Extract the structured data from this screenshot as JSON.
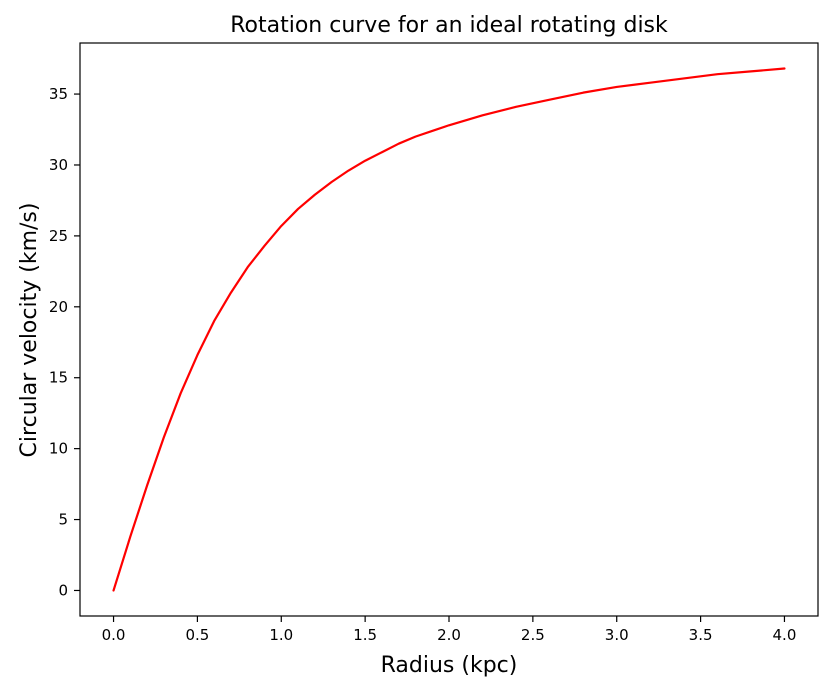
{
  "chart_data": {
    "type": "line",
    "title": "Rotation curve for an ideal rotating disk",
    "xlabel": "Radius (kpc)",
    "ylabel": "Circular velocity (km/s)",
    "xlim": [
      -0.2,
      4.2
    ],
    "ylim": [
      -1.8,
      38.6
    ],
    "x_ticks": [
      0.0,
      0.5,
      1.0,
      1.5,
      2.0,
      2.5,
      3.0,
      3.5,
      4.0
    ],
    "x_tick_labels": [
      "0.0",
      "0.5",
      "1.0",
      "1.5",
      "2.0",
      "2.5",
      "3.0",
      "3.5",
      "4.0"
    ],
    "y_ticks": [
      0,
      5,
      10,
      15,
      20,
      25,
      30,
      35
    ],
    "y_tick_labels": [
      "0",
      "5",
      "10",
      "15",
      "20",
      "25",
      "30",
      "35"
    ],
    "grid": false,
    "legend": "none",
    "series": [
      {
        "color": "#ff0000",
        "x": [
          0.0,
          0.1,
          0.2,
          0.3,
          0.4,
          0.5,
          0.6,
          0.7,
          0.8,
          0.9,
          1.0,
          1.1,
          1.2,
          1.3,
          1.4,
          1.5,
          1.6,
          1.7,
          1.8,
          1.9,
          2.0,
          2.2,
          2.4,
          2.6,
          2.8,
          3.0,
          3.2,
          3.4,
          3.6,
          3.8,
          4.0
        ],
        "y": [
          0.0,
          3.8,
          7.4,
          10.8,
          13.9,
          16.6,
          19.0,
          21.0,
          22.8,
          24.3,
          25.7,
          26.9,
          27.9,
          28.8,
          29.6,
          30.3,
          30.9,
          31.5,
          32.0,
          32.4,
          32.8,
          33.5,
          34.1,
          34.6,
          35.1,
          35.5,
          35.8,
          36.1,
          36.4,
          36.6,
          36.8
        ]
      }
    ]
  }
}
